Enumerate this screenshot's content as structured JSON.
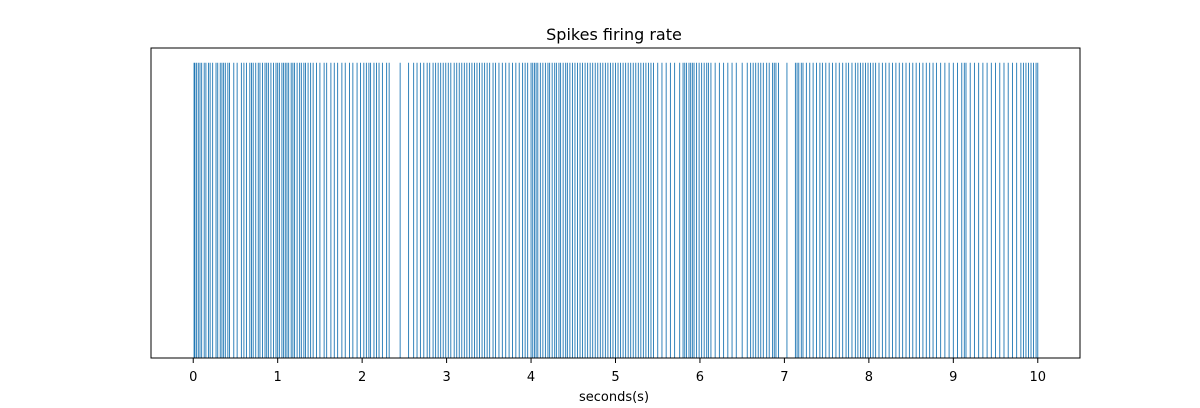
{
  "chart_data": {
    "type": "bar",
    "title": "Spikes firing rate",
    "xlabel": "seconds(s)",
    "ylabel": "",
    "xlim": [
      -0.5,
      10.5
    ],
    "ylim": [
      0,
      1.05
    ],
    "x_ticks": [
      0,
      1,
      2,
      3,
      4,
      5,
      6,
      7,
      8,
      9,
      10
    ],
    "x_tick_labels": [
      "0",
      "1",
      "2",
      "3",
      "4",
      "5",
      "6",
      "7",
      "8",
      "9",
      "10"
    ],
    "y_ticks_visible": false,
    "grid": false,
    "legend": "none",
    "bar_color": "#1f77b4",
    "spike_height": 1,
    "spike_width": 0.01,
    "spike_times": [
      0.01,
      0.02,
      0.04,
      0.06,
      0.08,
      0.1,
      0.13,
      0.15,
      0.18,
      0.2,
      0.23,
      0.27,
      0.29,
      0.32,
      0.34,
      0.36,
      0.38,
      0.41,
      0.43,
      0.48,
      0.52,
      0.57,
      0.6,
      0.63,
      0.67,
      0.69,
      0.71,
      0.74,
      0.77,
      0.79,
      0.82,
      0.85,
      0.87,
      0.89,
      0.92,
      0.95,
      0.98,
      1.0,
      1.02,
      1.05,
      1.07,
      1.09,
      1.11,
      1.13,
      1.16,
      1.18,
      1.2,
      1.23,
      1.26,
      1.28,
      1.31,
      1.33,
      1.36,
      1.39,
      1.42,
      1.46,
      1.5,
      1.55,
      1.58,
      1.63,
      1.67,
      1.71,
      1.76,
      1.8,
      1.85,
      1.89,
      1.94,
      1.98,
      2.02,
      2.05,
      2.08,
      2.1,
      2.14,
      2.17,
      2.2,
      2.24,
      2.29,
      2.32,
      2.45,
      2.55,
      2.61,
      2.65,
      2.69,
      2.73,
      2.77,
      2.8,
      2.84,
      2.87,
      2.9,
      2.93,
      2.96,
      2.99,
      3.02,
      3.05,
      3.09,
      3.12,
      3.15,
      3.18,
      3.21,
      3.24,
      3.27,
      3.3,
      3.33,
      3.36,
      3.39,
      3.42,
      3.45,
      3.48,
      3.51,
      3.55,
      3.58,
      3.62,
      3.66,
      3.7,
      3.74,
      3.78,
      3.82,
      3.86,
      3.9,
      3.93,
      3.96,
      4.0,
      4.02,
      4.04,
      4.06,
      4.08,
      4.11,
      4.14,
      4.17,
      4.2,
      4.22,
      4.25,
      4.28,
      4.3,
      4.33,
      4.35,
      4.38,
      4.41,
      4.43,
      4.46,
      4.49,
      4.52,
      4.55,
      4.58,
      4.61,
      4.64,
      4.67,
      4.7,
      4.73,
      4.76,
      4.79,
      4.82,
      4.85,
      4.88,
      4.91,
      4.94,
      4.97,
      5.0,
      5.03,
      5.06,
      5.09,
      5.12,
      5.15,
      5.18,
      5.21,
      5.24,
      5.27,
      5.3,
      5.33,
      5.36,
      5.39,
      5.42,
      5.45,
      5.5,
      5.55,
      5.6,
      5.65,
      5.7,
      5.76,
      5.8,
      5.82,
      5.84,
      5.87,
      5.89,
      5.91,
      5.93,
      5.96,
      5.99,
      6.02,
      6.05,
      6.08,
      6.1,
      6.13,
      6.18,
      6.23,
      6.28,
      6.33,
      6.38,
      6.43,
      6.5,
      6.56,
      6.6,
      6.63,
      6.66,
      6.69,
      6.72,
      6.75,
      6.79,
      6.82,
      6.86,
      6.88,
      6.9,
      6.93,
      7.03,
      7.13,
      7.15,
      7.17,
      7.2,
      7.22,
      7.26,
      7.3,
      7.34,
      7.38,
      7.42,
      7.45,
      7.49,
      7.53,
      7.57,
      7.61,
      7.65,
      7.69,
      7.73,
      7.76,
      7.8,
      7.84,
      7.87,
      7.9,
      7.93,
      7.96,
      7.99,
      8.02,
      8.05,
      8.08,
      8.12,
      8.16,
      8.2,
      8.24,
      8.28,
      8.32,
      8.36,
      8.4,
      8.44,
      8.48,
      8.52,
      8.56,
      8.6,
      8.64,
      8.68,
      8.72,
      8.76,
      8.8,
      8.85,
      8.9,
      8.95,
      9.0,
      9.05,
      9.1,
      9.13,
      9.15,
      9.2,
      9.25,
      9.3,
      9.35,
      9.4,
      9.45,
      9.5,
      9.55,
      9.6,
      9.65,
      9.7,
      9.75,
      9.8,
      9.83,
      9.86,
      9.89,
      9.92,
      9.95,
      9.98,
      10.0
    ]
  }
}
